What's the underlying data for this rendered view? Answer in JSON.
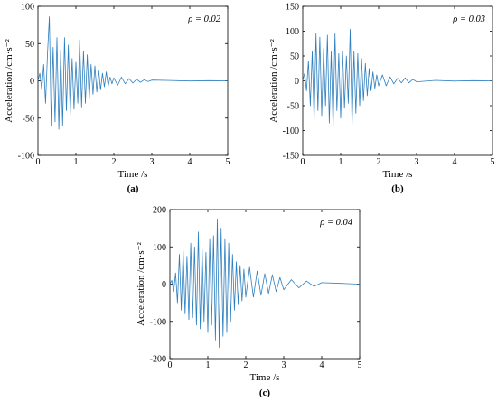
{
  "chart_data": [
    {
      "type": "line",
      "panel": "(a)",
      "annotation": "ρ = 0.02",
      "xlabel": "Time  /s",
      "ylabel": "Acceleration /cm·s⁻²",
      "xlim": [
        0,
        5
      ],
      "ylim": [
        -100,
        100
      ],
      "xticks": [
        0,
        1,
        2,
        3,
        4,
        5
      ],
      "yticks": [
        100,
        50,
        0,
        -50,
        -100
      ],
      "series": [
        {
          "color": "#2e7fbf",
          "x": [
            0,
            0.05,
            0.1,
            0.15,
            0.2,
            0.25,
            0.3,
            0.35,
            0.4,
            0.45,
            0.5,
            0.55,
            0.6,
            0.65,
            0.7,
            0.75,
            0.8,
            0.85,
            0.9,
            0.95,
            1.0,
            1.05,
            1.1,
            1.15,
            1.2,
            1.25,
            1.3,
            1.35,
            1.4,
            1.45,
            1.5,
            1.55,
            1.6,
            1.65,
            1.7,
            1.75,
            1.8,
            1.85,
            1.9,
            1.95,
            2.0,
            2.1,
            2.2,
            2.3,
            2.4,
            2.5,
            2.6,
            2.7,
            2.8,
            2.9,
            3.0,
            3.5,
            4.0,
            4.5,
            5.0
          ],
          "y": [
            0,
            10,
            -12,
            22,
            -30,
            35,
            86,
            -60,
            45,
            -55,
            58,
            -65,
            42,
            -60,
            58,
            -40,
            48,
            -45,
            30,
            -38,
            25,
            -30,
            55,
            -35,
            40,
            -30,
            35,
            -25,
            22,
            -18,
            20,
            -15,
            14,
            -12,
            10,
            -8,
            12,
            -7,
            5,
            -4,
            4,
            -6,
            5,
            -4,
            3,
            -3,
            2,
            -2,
            1.5,
            -1,
            1,
            0.5,
            -0.3,
            0.2,
            0
          ]
        }
      ]
    },
    {
      "type": "line",
      "panel": "(b)",
      "annotation": "ρ = 0.03",
      "xlabel": "Time  /s",
      "ylabel": "Acceleration /cm·s⁻²",
      "xlim": [
        0,
        5
      ],
      "ylim": [
        -150,
        150
      ],
      "xticks": [
        0,
        1,
        2,
        3,
        4,
        5
      ],
      "yticks": [
        150,
        100,
        50,
        0,
        -50,
        -100,
        -150
      ],
      "series": [
        {
          "color": "#2e7fbf",
          "x": [
            0,
            0.05,
            0.1,
            0.15,
            0.2,
            0.25,
            0.3,
            0.35,
            0.4,
            0.45,
            0.5,
            0.55,
            0.6,
            0.65,
            0.7,
            0.75,
            0.8,
            0.85,
            0.9,
            0.95,
            1.0,
            1.05,
            1.1,
            1.15,
            1.2,
            1.25,
            1.3,
            1.35,
            1.4,
            1.45,
            1.5,
            1.55,
            1.6,
            1.65,
            1.7,
            1.75,
            1.8,
            1.85,
            1.9,
            1.95,
            2.0,
            2.1,
            2.2,
            2.3,
            2.4,
            2.5,
            2.6,
            2.7,
            2.8,
            2.9,
            3.0,
            3.5,
            4.0,
            4.5,
            5.0
          ],
          "y": [
            0,
            15,
            -20,
            40,
            -50,
            60,
            -80,
            95,
            -60,
            88,
            -70,
            65,
            -50,
            92,
            -85,
            60,
            -95,
            95,
            -60,
            55,
            -75,
            60,
            -55,
            50,
            -45,
            104,
            -90,
            60,
            -65,
            55,
            -50,
            45,
            -40,
            35,
            -30,
            25,
            -20,
            18,
            -15,
            12,
            -10,
            12,
            -10,
            8,
            -6,
            5,
            -4,
            6,
            -4,
            3,
            -2,
            1,
            -0.5,
            0.3,
            0
          ]
        }
      ]
    },
    {
      "type": "line",
      "panel": "(c)",
      "annotation": "ρ = 0.04",
      "xlabel": "Time  /s",
      "ylabel": "Acceleration /cm·s⁻²",
      "xlim": [
        0,
        5
      ],
      "ylim": [
        -200,
        200
      ],
      "xticks": [
        0,
        1,
        2,
        3,
        4,
        5
      ],
      "yticks": [
        200,
        100,
        0,
        -100,
        -200
      ],
      "series": [
        {
          "color": "#2e7fbf",
          "x": [
            0,
            0.05,
            0.1,
            0.15,
            0.2,
            0.25,
            0.3,
            0.35,
            0.4,
            0.45,
            0.5,
            0.55,
            0.6,
            0.65,
            0.7,
            0.75,
            0.8,
            0.85,
            0.9,
            0.95,
            1.0,
            1.05,
            1.1,
            1.15,
            1.2,
            1.25,
            1.3,
            1.35,
            1.4,
            1.45,
            1.5,
            1.55,
            1.6,
            1.65,
            1.7,
            1.75,
            1.8,
            1.85,
            1.9,
            1.95,
            2.0,
            2.1,
            2.2,
            2.3,
            2.4,
            2.5,
            2.6,
            2.7,
            2.8,
            2.9,
            3.0,
            3.2,
            3.4,
            3.6,
            3.8,
            4.0,
            4.5,
            5.0
          ],
          "y": [
            0,
            10,
            -20,
            30,
            -50,
            80,
            -70,
            90,
            -80,
            75,
            -95,
            110,
            -90,
            100,
            -110,
            140,
            -120,
            95,
            -100,
            85,
            -130,
            120,
            -110,
            130,
            -150,
            175,
            -170,
            150,
            -140,
            120,
            -130,
            110,
            -100,
            80,
            -70,
            60,
            -55,
            50,
            -45,
            40,
            -35,
            45,
            -35,
            35,
            -30,
            28,
            -25,
            25,
            -20,
            18,
            -15,
            12,
            -10,
            8,
            -6,
            4,
            2,
            0
          ]
        }
      ]
    }
  ]
}
